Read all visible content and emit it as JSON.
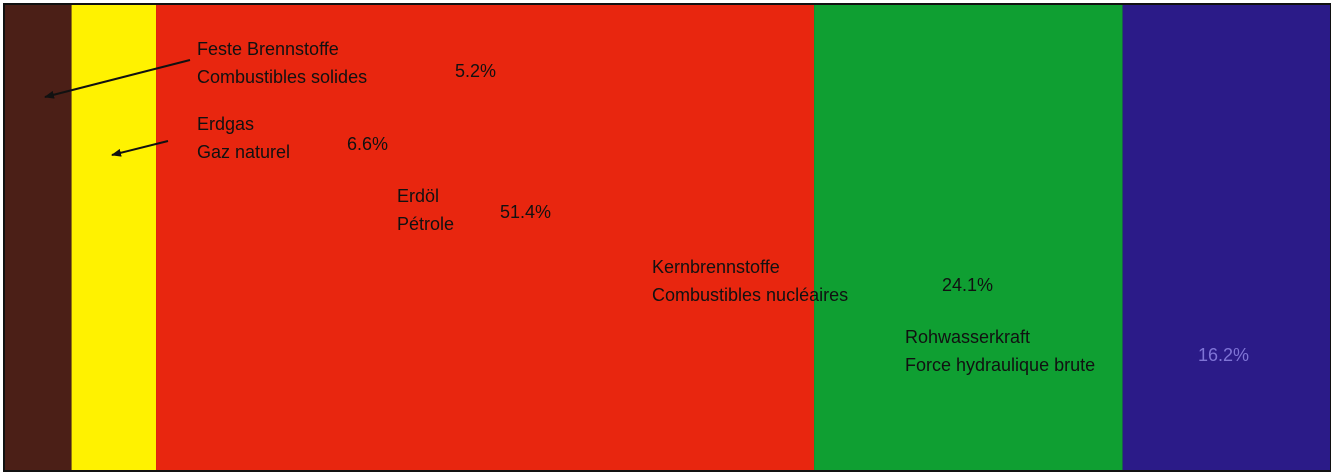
{
  "chart_data": {
    "type": "stacked_bar",
    "series": [
      {
        "name": [
          "Feste Brennstoffe",
          "Combustibles solides"
        ],
        "color": "#4b1f17",
        "values": [
          5.2
        ],
        "value_labels": [
          "5.2%"
        ]
      },
      {
        "name": [
          "Erdgas",
          "Gaz naturel"
        ],
        "color": "#fff200",
        "values": [
          6.6
        ],
        "value_labels": [
          "6.6%"
        ]
      },
      {
        "name": [
          "Erdöl",
          "Pétrole"
        ],
        "color": "#e8260f",
        "values": [
          51.4
        ],
        "value_labels": [
          "51.4%"
        ]
      },
      {
        "name": [
          "Kernbrennstoffe",
          "Combustibles nucléaires"
        ],
        "color": "#0f9f32",
        "values": [
          24.1
        ],
        "value_labels": [
          "24.1%"
        ]
      },
      {
        "name": [
          "Rohwasserkraft",
          "Force hydraulique brute"
        ],
        "color": "#2b1b88",
        "values": [
          16.2
        ],
        "value_labels": [
          "16.2%"
        ]
      }
    ]
  }
}
